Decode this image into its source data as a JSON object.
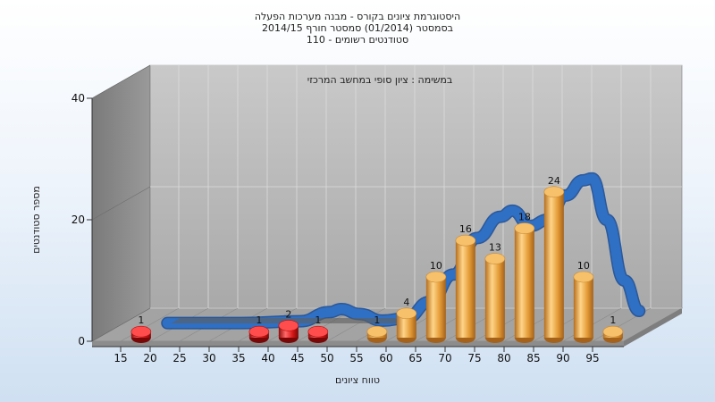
{
  "header": {
    "line1": "היסטוגרמת ציונים בקורס - מבנה מערכות הפעלה",
    "line2": "בסמסטר  (01/2014)  סמסטר חורף 2014/15",
    "line3": "סטודנטים רשומים - 110"
  },
  "chart_data": {
    "type": "bar",
    "subtitle": "במשימה : ציון סופי במחשב המרכזי",
    "xlabel": "טווח ציונים",
    "ylabel": "מספר סטודנטים",
    "ylim": [
      0,
      40
    ],
    "yticks": [
      0,
      20,
      40
    ],
    "xticks": [
      15,
      20,
      25,
      30,
      35,
      40,
      45,
      50,
      55,
      60,
      65,
      70,
      75,
      80,
      85,
      90,
      95
    ],
    "bars": [
      {
        "x": 15,
        "value": 1,
        "label": "1",
        "status": "fail"
      },
      {
        "x": 35,
        "value": 1,
        "label": "1",
        "status": "fail"
      },
      {
        "x": 40,
        "value": 2,
        "label": "2",
        "status": "fail"
      },
      {
        "x": 45,
        "value": 1,
        "label": "1",
        "status": "fail"
      },
      {
        "x": 55,
        "value": 1,
        "label": "1",
        "status": "pass"
      },
      {
        "x": 60,
        "value": 4,
        "label": "4",
        "status": "pass"
      },
      {
        "x": 65,
        "value": 10,
        "label": "10",
        "status": "pass"
      },
      {
        "x": 70,
        "value": 16,
        "label": "16",
        "status": "pass"
      },
      {
        "x": 75,
        "value": 13,
        "label": "13",
        "status": "pass"
      },
      {
        "x": 80,
        "value": 18,
        "label": "18",
        "status": "pass"
      },
      {
        "x": 85,
        "value": 24,
        "label": "24",
        "status": "pass"
      },
      {
        "x": 90,
        "value": 10,
        "label": "10",
        "status": "pass"
      },
      {
        "x": 95,
        "value": 1,
        "label": "1",
        "status": "pass"
      }
    ],
    "curve": {
      "points": [
        [
          17.5,
          0
        ],
        [
          30,
          0
        ],
        [
          40,
          0.3
        ],
        [
          45,
          1.8
        ],
        [
          47,
          2.3
        ],
        [
          50,
          1.5
        ],
        [
          54,
          0.4
        ],
        [
          58,
          0.8
        ],
        [
          62,
          3.5
        ],
        [
          66,
          8
        ],
        [
          70,
          14
        ],
        [
          74,
          17.5
        ],
        [
          76,
          18.5
        ],
        [
          79,
          16
        ],
        [
          82,
          17
        ],
        [
          85,
          21
        ],
        [
          88,
          23.5
        ],
        [
          89.5,
          23.8
        ],
        [
          92,
          17
        ],
        [
          95,
          7
        ],
        [
          97.5,
          2
        ]
      ]
    },
    "grid": true,
    "colors": {
      "fail": "#e01d1d",
      "pass": "#e9a43e",
      "curve": "#2f6fc4",
      "wall": "#b3b3b3",
      "side_wall": "#8a8a8a",
      "floor": "#a3a3a3"
    }
  }
}
